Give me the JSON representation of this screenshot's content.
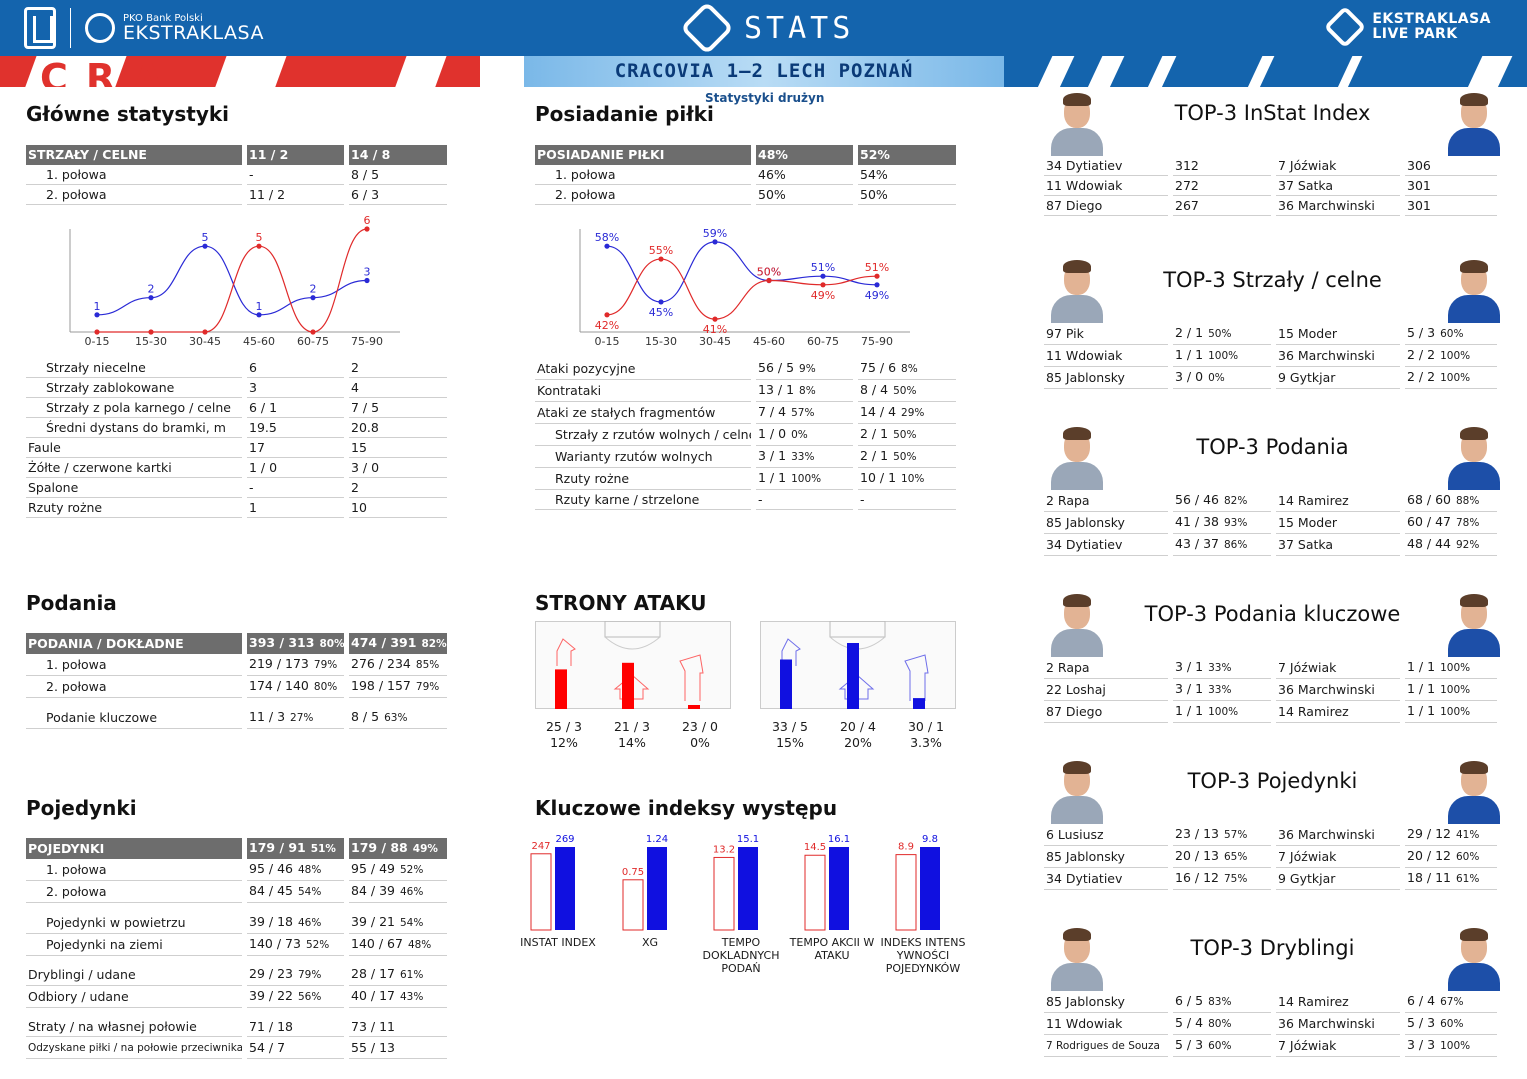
{
  "header": {
    "brand_small": "PKO Bank Polski",
    "brand_big": "EKSTRAKLASA",
    "title": "STATS",
    "right_1": "EKSTRAKLASA",
    "right_2": "LIVE PARK",
    "score": "CRACOVIA 1–2  LECH POZNAŃ",
    "subhead": "Statystyki drużyn",
    "banner_text": "CRA"
  },
  "sections": {
    "main": "Główne statystyki",
    "possession": "Posiadanie piłki",
    "passes": "Podania",
    "duels": "Pojedynki",
    "attack": "STRONY ATAKU",
    "kpi": "Kluczowe indeksy występu"
  },
  "main_header": {
    "label": "STRZAŁY / CELNE",
    "home": "11 / 2",
    "away": "14 / 8"
  },
  "main_halves": [
    {
      "label": "1. połowa",
      "home": "-",
      "away": "8 / 5"
    },
    {
      "label": "2. połowa",
      "home": "11 / 2",
      "away": "6 / 3"
    }
  ],
  "main_rows": [
    {
      "label": "Strzały niecelne",
      "home": "6",
      "away": "2",
      "ind": true
    },
    {
      "label": "Strzały zablokowane",
      "home": "3",
      "away": "4",
      "ind": true
    },
    {
      "label": "Strzały z pola karnego / celne",
      "home": "6 / 1",
      "away": "7 / 5",
      "ind": true
    },
    {
      "label": "Średni dystans do bramki, m",
      "home": "19.5",
      "away": "20.8",
      "ind": true
    },
    {
      "label": "Faule",
      "home": "17",
      "away": "15",
      "ind": false
    },
    {
      "label": "Żółte / czerwone kartki",
      "home": "1 / 0",
      "away": "3 / 0",
      "ind": false
    },
    {
      "label": "Spalone",
      "home": "-",
      "away": "2",
      "ind": false
    },
    {
      "label": "Rzuty rożne",
      "home": "1",
      "away": "10",
      "ind": false
    }
  ],
  "poss_header": {
    "label": "POSIADANIE PIŁKI",
    "home": "48%",
    "away": "52%"
  },
  "poss_halves": [
    {
      "label": "1. połowa",
      "home": "46%",
      "away": "54%"
    },
    {
      "label": "2. połowa",
      "home": "50%",
      "away": "50%"
    }
  ],
  "poss_rows": [
    {
      "label": "Ataki pozycyjne",
      "home": "56 / 5",
      "hp": "9%",
      "away": "75 / 6",
      "ap": "8%",
      "ind": false
    },
    {
      "label": "Kontrataki",
      "home": "13 / 1",
      "hp": "8%",
      "away": "8 / 4",
      "ap": "50%",
      "ind": false
    },
    {
      "label": "Ataki ze stałych fragmentów",
      "home": "7 / 4",
      "hp": "57%",
      "away": "14 / 4",
      "ap": "29%",
      "ind": false
    },
    {
      "label": "Strzały z rzutów wolnych / celne",
      "home": "1 / 0",
      "hp": "0%",
      "away": "2 / 1",
      "ap": "50%",
      "ind": true
    },
    {
      "label": "Warianty rzutów wolnych",
      "home": "3 / 1",
      "hp": "33%",
      "away": "2 / 1",
      "ap": "50%",
      "ind": true
    },
    {
      "label": "Rzuty rożne",
      "home": "1 / 1",
      "hp": "100%",
      "away": "10 / 1",
      "ap": "10%",
      "ind": true
    },
    {
      "label": "Rzuty karne / strzelone",
      "home": "-",
      "hp": "",
      "away": "-",
      "ap": "",
      "ind": true
    }
  ],
  "pass_header": {
    "label": "PODANIA / DOKŁADNE",
    "home": "393 / 313",
    "hp": "80%",
    "away": "474 / 391",
    "ap": "82%"
  },
  "pass_rows": [
    {
      "label": "1. połowa",
      "home": "219 / 173",
      "hp": "79%",
      "away": "276 / 234",
      "ap": "85%"
    },
    {
      "label": "2. połowa",
      "home": "174 / 140",
      "hp": "80%",
      "away": "198 / 157",
      "ap": "79%"
    },
    {
      "label": "Podanie kluczowe",
      "home": "11 / 3",
      "hp": "27%",
      "away": "8 / 5",
      "ap": "63%"
    }
  ],
  "duel_header": {
    "label": "POJEDYNKI",
    "home": "179 / 91",
    "hp": "51%",
    "away": "179 / 88",
    "ap": "49%"
  },
  "duel_rows": [
    {
      "label": "1. połowa",
      "home": "95 / 46",
      "hp": "48%",
      "away": "95 / 49",
      "ap": "52%",
      "ind": true
    },
    {
      "label": "2. połowa",
      "home": "84 / 45",
      "hp": "54%",
      "away": "84 / 39",
      "ap": "46%",
      "ind": true
    },
    {
      "label": "Pojedynki w powietrzu",
      "home": "39 / 18",
      "hp": "46%",
      "away": "39 / 21",
      "ap": "54%",
      "ind": true
    },
    {
      "label": "Pojedynki na ziemi",
      "home": "140 / 73",
      "hp": "52%",
      "away": "140 / 67",
      "ap": "48%",
      "ind": true
    },
    {
      "label": "Dryblingi / udane",
      "home": "29 / 23",
      "hp": "79%",
      "away": "28 / 17",
      "ap": "61%",
      "ind": false
    },
    {
      "label": "Odbiory / udane",
      "home": "39 / 22",
      "hp": "56%",
      "away": "40 / 17",
      "ap": "43%",
      "ind": false
    },
    {
      "label": "Straty / na własnej połowie",
      "home": "71 / 18",
      "hp": "",
      "away": "73 / 11",
      "ap": "",
      "ind": false
    },
    {
      "label": "Odzyskane piłki / na połowie przeciwnika",
      "home": "54 / 7",
      "hp": "",
      "away": "55 / 13",
      "ap": "",
      "ind": false
    }
  ],
  "attack": {
    "home": [
      {
        "v": "25 / 3",
        "p": "12%"
      },
      {
        "v": "21 / 3",
        "p": "14%"
      },
      {
        "v": "23 / 0",
        "p": "0%"
      }
    ],
    "away": [
      {
        "v": "33 / 5",
        "p": "15%"
      },
      {
        "v": "20 / 4",
        "p": "20%"
      },
      {
        "v": "30 / 1",
        "p": "3.3%"
      }
    ]
  },
  "tops": [
    {
      "title": "TOP-3 InStat Index",
      "rows": [
        [
          "34 Dytiatiev",
          "312",
          "",
          "7  Jóźwiak",
          "306",
          ""
        ],
        [
          "11 Wdowiak",
          "272",
          "",
          "37 Satka",
          "301",
          ""
        ],
        [
          "87 Diego",
          "267",
          "",
          "36 Marchwinski",
          "301",
          ""
        ]
      ]
    },
    {
      "title": "TOP-3 Strzały / celne",
      "rows": [
        [
          "97 Pik",
          "2 / 1",
          "50%",
          "15 Moder",
          "5 / 3",
          "60%"
        ],
        [
          "11 Wdowiak",
          "1 / 1",
          "100%",
          "36 Marchwinski",
          "2 / 2",
          "100%"
        ],
        [
          "85 Jablonsky",
          "3 / 0",
          "0%",
          "9  Gytkjar",
          "2 / 2",
          "100%"
        ]
      ]
    },
    {
      "title": "TOP-3 Podania",
      "rows": [
        [
          "2  Rapa",
          "56 / 46",
          "82%",
          "14 Ramirez",
          "68 / 60",
          "88%"
        ],
        [
          "85 Jablonsky",
          "41 / 38",
          "93%",
          "15 Moder",
          "60 / 47",
          "78%"
        ],
        [
          "34 Dytiatiev",
          "43 / 37",
          "86%",
          "37 Satka",
          "48 / 44",
          "92%"
        ]
      ]
    },
    {
      "title": "TOP-3 Podania kluczowe",
      "rows": [
        [
          "2  Rapa",
          "3 / 1",
          "33%",
          "7  Jóźwiak",
          "1 / 1",
          "100%"
        ],
        [
          "22 Loshaj",
          "3 / 1",
          "33%",
          "36 Marchwinski",
          "1 / 1",
          "100%"
        ],
        [
          "87 Diego",
          "1 / 1",
          "100%",
          "14 Ramirez",
          "1 / 1",
          "100%"
        ]
      ]
    },
    {
      "title": "TOP-3 Pojedynki",
      "rows": [
        [
          "6  Lusiusz",
          "23 / 13",
          "57%",
          "36 Marchwinski",
          "29 / 12",
          "41%"
        ],
        [
          "85 Jablonsky",
          "20 / 13",
          "65%",
          "7  Jóźwiak",
          "20 / 12",
          "60%"
        ],
        [
          "34 Dytiatiev",
          "16 / 12",
          "75%",
          "9  Gytkjar",
          "18 / 11",
          "61%"
        ]
      ]
    },
    {
      "title": "TOP-3 Dryblingi",
      "rows": [
        [
          "85 Jablonsky",
          "6 / 5",
          "83%",
          "14 Ramirez",
          "6 / 4",
          "67%"
        ],
        [
          "11 Wdowiak",
          "5 / 4",
          "80%",
          "36 Marchwinski",
          "5 / 3",
          "60%"
        ],
        [
          "7  Rodrigues de Souza",
          "5 / 3",
          "60%",
          "7  Jóźwiak",
          "3 / 3",
          "100%"
        ]
      ]
    }
  ],
  "chart_data": [
    {
      "type": "line",
      "categories": [
        "0-15",
        "15-30",
        "30-45",
        "45-60",
        "60-75",
        "75-90"
      ],
      "series": [
        {
          "values": [
            1,
            2,
            5,
            1,
            2,
            3
          ],
          "color": "#2a2ad6"
        },
        {
          "values": [
            0,
            0,
            0,
            5,
            0,
            6
          ],
          "color": "#e02a2a"
        }
      ],
      "ylim": [
        0,
        6
      ],
      "label_color_away": "#2a2ad6"
    },
    {
      "type": "line",
      "categories": [
        "0-15",
        "15-30",
        "30-45",
        "45-60",
        "60-75",
        "75-90"
      ],
      "series": [
        {
          "values": [
            58,
            45,
            59,
            50,
            51,
            49
          ],
          "color": "#2a2ad6"
        },
        {
          "values": [
            42,
            55,
            41,
            50,
            49,
            51
          ],
          "color": "#e02a2a"
        }
      ],
      "ylim": [
        38,
        62
      ]
    },
    {
      "type": "bar",
      "categories": [
        "INSTAT INDEX",
        "XG",
        "TEMPO DOKLADNYCH PODAŃ",
        "TEMPO AKCII W ATAKU",
        "INDEKS INTENSYWNOŚCI POJEDYNKÓW"
      ],
      "series": [
        {
          "values": [
            247,
            0.75,
            13.2,
            14.5,
            8.9
          ],
          "color": "#e02a2a"
        },
        {
          "values": [
            269,
            1.24,
            15.1,
            16.1,
            9.8
          ],
          "color": "#1010e0"
        }
      ],
      "labels": [
        "INSTAT INDEX",
        "XG",
        "TEMPO\nDOKLADNYCH\nPODAŃ",
        "TEMPO AKCII W\nATAKU",
        "INDEKS INTENS\nYWNOŚCI\nPOJEDYNKÓW"
      ]
    }
  ]
}
